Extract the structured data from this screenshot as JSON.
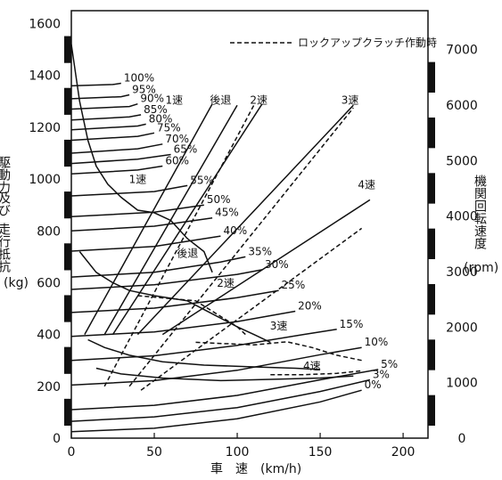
{
  "chart_data": {
    "type": "line",
    "title": "",
    "legend": {
      "label": "ロックアップクラッチ作動時",
      "style": "dashed",
      "placement": "top-right"
    },
    "xaxis": {
      "label": "車　速　(km/h)",
      "range": [
        0,
        215
      ],
      "ticks": [
        0,
        50,
        100,
        150,
        200
      ]
    },
    "yaxis_left": {
      "label_lines": [
        "駆動力",
        "及び",
        "走行抵抗",
        "(kg)"
      ],
      "range": [
        0,
        1650
      ],
      "ticks": [
        0,
        200,
        400,
        600,
        800,
        1000,
        1200,
        1400,
        1600
      ]
    },
    "yaxis_right": {
      "label_lines": [
        "機関回転速度",
        "(rpm)"
      ],
      "range": [
        0,
        7700
      ],
      "ticks": [
        0,
        1000,
        2000,
        3000,
        4000,
        5000,
        6000,
        7000
      ]
    },
    "resistance_curves": [
      {
        "label": "0%",
        "points": [
          [
            0,
            25
          ],
          [
            50,
            38
          ],
          [
            100,
            75
          ],
          [
            150,
            140
          ],
          [
            175,
            185
          ]
        ]
      },
      {
        "label": "3%",
        "points": [
          [
            0,
            65
          ],
          [
            50,
            82
          ],
          [
            100,
            118
          ],
          [
            150,
            180
          ],
          [
            180,
            225
          ]
        ]
      },
      {
        "label": "5%",
        "points": [
          [
            0,
            110
          ],
          [
            50,
            127
          ],
          [
            100,
            165
          ],
          [
            150,
            225
          ],
          [
            185,
            265
          ]
        ]
      },
      {
        "label": "10%",
        "points": [
          [
            0,
            205
          ],
          [
            50,
            222
          ],
          [
            100,
            262
          ],
          [
            150,
            322
          ],
          [
            175,
            350
          ]
        ]
      },
      {
        "label": "15%",
        "points": [
          [
            0,
            300
          ],
          [
            50,
            318
          ],
          [
            100,
            358
          ],
          [
            140,
            400
          ],
          [
            160,
            420
          ]
        ]
      },
      {
        "label": "20%",
        "points": [
          [
            0,
            393
          ],
          [
            50,
            410
          ],
          [
            100,
            450
          ],
          [
            135,
            490
          ]
        ]
      },
      {
        "label": "25%",
        "points": [
          [
            0,
            485
          ],
          [
            50,
            502
          ],
          [
            100,
            542
          ],
          [
            125,
            570
          ]
        ]
      },
      {
        "label": "30%",
        "points": [
          [
            0,
            574
          ],
          [
            50,
            592
          ],
          [
            100,
            632
          ],
          [
            115,
            650
          ]
        ]
      },
      {
        "label": "35%",
        "points": [
          [
            0,
            622
          ],
          [
            50,
            640
          ],
          [
            90,
            680
          ],
          [
            105,
            700
          ]
        ]
      },
      {
        "label": "40%",
        "points": [
          [
            0,
            722
          ],
          [
            50,
            740
          ],
          [
            90,
            780
          ]
        ]
      },
      {
        "label": "45%",
        "points": [
          [
            0,
            800
          ],
          [
            50,
            818
          ],
          [
            85,
            850
          ]
        ]
      },
      {
        "label": "50%",
        "points": [
          [
            0,
            855
          ],
          [
            50,
            872
          ],
          [
            80,
            900
          ]
        ]
      },
      {
        "label": "55%",
        "points": [
          [
            0,
            935
          ],
          [
            50,
            952
          ],
          [
            70,
            975
          ]
        ]
      },
      {
        "label": "60%",
        "points": [
          [
            0,
            1020
          ],
          [
            40,
            1035
          ],
          [
            55,
            1050
          ]
        ]
      },
      {
        "label": "65%",
        "points": [
          [
            0,
            1060
          ],
          [
            40,
            1077
          ],
          [
            60,
            1095
          ]
        ]
      },
      {
        "label": "70%",
        "points": [
          [
            0,
            1100
          ],
          [
            40,
            1117
          ],
          [
            55,
            1135
          ]
        ]
      },
      {
        "label": "75%",
        "points": [
          [
            0,
            1150
          ],
          [
            40,
            1165
          ],
          [
            50,
            1178
          ]
        ]
      },
      {
        "label": "80%",
        "points": [
          [
            0,
            1190
          ],
          [
            40,
            1205
          ],
          [
            45,
            1212
          ]
        ]
      },
      {
        "label": "85%",
        "points": [
          [
            0,
            1228
          ],
          [
            35,
            1240
          ],
          [
            42,
            1248
          ]
        ]
      },
      {
        "label": "90%",
        "points": [
          [
            0,
            1270
          ],
          [
            35,
            1280
          ],
          [
            40,
            1290
          ]
        ]
      },
      {
        "label": "95%",
        "points": [
          [
            0,
            1310
          ],
          [
            30,
            1318
          ],
          [
            35,
            1325
          ]
        ]
      },
      {
        "label": "100%",
        "points": [
          [
            0,
            1360
          ],
          [
            25,
            1365
          ],
          [
            30,
            1370
          ]
        ]
      }
    ],
    "driving_force_curves": [
      {
        "label": "1速",
        "points": [
          [
            0,
            1520
          ],
          [
            5,
            1300
          ],
          [
            10,
            1150
          ],
          [
            15,
            1050
          ],
          [
            22,
            980
          ],
          [
            30,
            930
          ],
          [
            40,
            880
          ],
          [
            50,
            870
          ],
          [
            60,
            840
          ],
          [
            70,
            770
          ],
          [
            80,
            720
          ],
          [
            85,
            640
          ]
        ]
      },
      {
        "label": "2速",
        "points": [
          [
            5,
            720
          ],
          [
            15,
            640
          ],
          [
            25,
            600
          ],
          [
            35,
            570
          ],
          [
            50,
            550
          ],
          [
            70,
            530
          ],
          [
            85,
            480
          ],
          [
            100,
            430
          ],
          [
            110,
            400
          ],
          [
            120,
            370
          ]
        ]
      },
      {
        "label": "3速",
        "points": [
          [
            10,
            380
          ],
          [
            20,
            350
          ],
          [
            35,
            320
          ],
          [
            55,
            295
          ],
          [
            80,
            282
          ],
          [
            110,
            275
          ],
          [
            135,
            270
          ],
          [
            150,
            265
          ]
        ]
      },
      {
        "label": "4速",
        "points": [
          [
            15,
            270
          ],
          [
            30,
            248
          ],
          [
            55,
            232
          ],
          [
            90,
            222
          ],
          [
            125,
            228
          ],
          [
            150,
            232
          ],
          [
            170,
            240
          ]
        ]
      }
    ],
    "engine_speed_lines": [
      {
        "label": "1速",
        "points": [
          [
            8,
            400
          ],
          [
            85,
            1290
          ]
        ]
      },
      {
        "label": "後退",
        "points": [
          [
            20,
            400
          ],
          [
            100,
            1285
          ]
        ]
      },
      {
        "label": "2速",
        "points": [
          [
            25,
            400
          ],
          [
            115,
            1290
          ]
        ]
      },
      {
        "label": "3速",
        "points": [
          [
            40,
            400
          ],
          [
            170,
            1285
          ]
        ]
      },
      {
        "label": "4速",
        "points": [
          [
            55,
            400
          ],
          [
            180,
            920
          ]
        ]
      }
    ],
    "lockup_dashed": [
      {
        "label": "2速",
        "points": [
          [
            20,
            200
          ],
          [
            110,
            1285
          ]
        ]
      },
      {
        "label": "3速",
        "points": [
          [
            35,
            200
          ],
          [
            170,
            1275
          ]
        ]
      },
      {
        "label": "4速",
        "points": [
          [
            42,
            185
          ],
          [
            175,
            810
          ]
        ]
      },
      {
        "label": "2速",
        "points": [
          [
            40,
            550
          ],
          [
            75,
            530
          ],
          [
            100,
            430
          ],
          [
            105,
            400
          ]
        ]
      },
      {
        "label": "3速",
        "points": [
          [
            75,
            370
          ],
          [
            110,
            360
          ],
          [
            130,
            372
          ],
          [
            145,
            350
          ],
          [
            160,
            320
          ],
          [
            175,
            300
          ]
        ]
      },
      {
        "label": "4速",
        "points": [
          [
            120,
            245
          ],
          [
            140,
            245
          ],
          [
            160,
            250
          ],
          [
            175,
            260
          ]
        ]
      }
    ],
    "annotations": [
      {
        "text": "1速",
        "x": 62,
        "y": 1290
      },
      {
        "text": "後退",
        "x": 90,
        "y": 1290
      },
      {
        "text": "2速",
        "x": 113,
        "y": 1290
      },
      {
        "text": "3速",
        "x": 168,
        "y": 1290
      },
      {
        "text": "4速",
        "x": 178,
        "y": 965
      },
      {
        "text": "1速",
        "x": 40,
        "y": 985
      },
      {
        "text": "後退",
        "x": 70,
        "y": 700
      },
      {
        "text": "2速",
        "x": 93,
        "y": 585
      },
      {
        "text": "3速",
        "x": 125,
        "y": 420
      },
      {
        "text": "4速",
        "x": 145,
        "y": 265
      }
    ]
  }
}
